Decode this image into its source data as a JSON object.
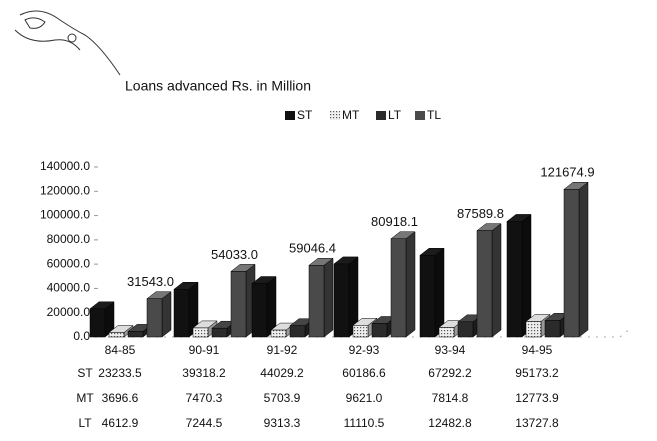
{
  "chart_data": {
    "type": "bar3d",
    "title": "Loans advanced Rs. in Million",
    "categories": [
      "84-85",
      "90-91",
      "91-92",
      "92-93",
      "93-94",
      "94-95"
    ],
    "series": [
      {
        "name": "ST",
        "color": "#111111",
        "values": [
          23233.5,
          39318.2,
          44029.2,
          60186.6,
          67292.2,
          95173.2
        ],
        "value_labels": [
          "23233.5",
          "39318.2",
          "44029.2",
          "60186.6",
          "67292.2",
          "95173.2"
        ]
      },
      {
        "name": "MT",
        "color": "#c8c8c8",
        "values": [
          3696.6,
          7470.3,
          5703.9,
          9621.0,
          7814.8,
          12773.9
        ],
        "value_labels": [
          "3696.6",
          "7470.3",
          "5703.9",
          "9621.0",
          "7814.8",
          "12773.9"
        ]
      },
      {
        "name": "LT",
        "color": "#2b2b2b",
        "values": [
          4612.9,
          7244.5,
          9313.3,
          11110.5,
          12482.8,
          13727.8
        ],
        "value_labels": [
          "4612.9",
          "7244.5",
          "9313.3",
          "11110.5",
          "12482.8",
          "13727.8"
        ]
      },
      {
        "name": "TL",
        "color": "#4a4a4a",
        "values": [
          31543.0,
          54033.0,
          59046.4,
          80918.1,
          87589.8,
          121674.9
        ],
        "value_labels": [
          "31543.0",
          "54033.0",
          "59046.4",
          "80918.1",
          "87589.8",
          "121674.9"
        ]
      }
    ],
    "ylim": [
      0,
      140000
    ],
    "yticks": [
      {
        "value": 0,
        "label": "0.0"
      },
      {
        "value": 20000,
        "label": "20000.0"
      },
      {
        "value": 40000,
        "label": "40000.0"
      },
      {
        "value": 60000,
        "label": "60000.0"
      },
      {
        "value": 80000,
        "label": "80000.0"
      },
      {
        "value": 100000,
        "label": "100000.0"
      },
      {
        "value": 120000,
        "label": "120000.0"
      },
      {
        "value": 140000,
        "label": "140000.0"
      }
    ],
    "table_rows": [
      "ST",
      "MT",
      "LT"
    ]
  }
}
